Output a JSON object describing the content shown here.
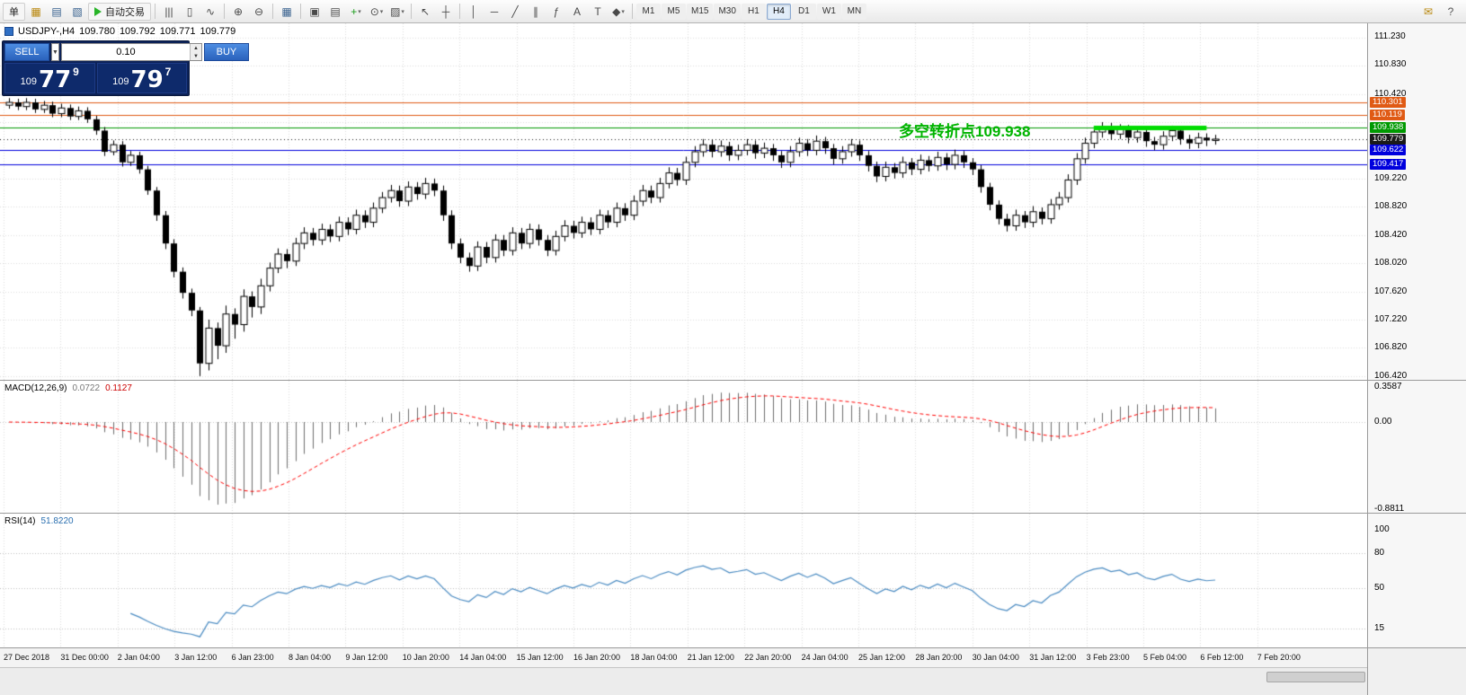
{
  "toolbar": {
    "items": [
      {
        "type": "button",
        "name": "new-order-button",
        "label": "单"
      },
      {
        "type": "icon",
        "name": "market-watch-icon",
        "glyph": "▦",
        "color": "#b8860b"
      },
      {
        "type": "icon",
        "name": "data-window-icon",
        "glyph": "▤",
        "color": "#38618e"
      },
      {
        "type": "icon",
        "name": "navigator-icon",
        "glyph": "▧",
        "color": "#38618e"
      },
      {
        "type": "button",
        "name": "auto-trading-button",
        "label": "自动交易",
        "icon": "play"
      },
      {
        "type": "sep"
      },
      {
        "type": "icon",
        "name": "bar-chart-icon",
        "glyph": "|||"
      },
      {
        "type": "icon",
        "name": "candlestick-chart-icon",
        "glyph": "▯"
      },
      {
        "type": "icon",
        "name": "line-chart-icon",
        "glyph": "∿"
      },
      {
        "type": "sep"
      },
      {
        "type": "icon",
        "name": "zoom-in-icon",
        "glyph": "⊕"
      },
      {
        "type": "icon",
        "name": "zoom-out-icon",
        "glyph": "⊖"
      },
      {
        "type": "sep"
      },
      {
        "type": "icon",
        "name": "tile-windows-icon",
        "glyph": "▦",
        "color": "#38618e"
      },
      {
        "type": "sep"
      },
      {
        "type": "icon",
        "name": "arrange-windows-icon",
        "glyph": "▣"
      },
      {
        "type": "icon",
        "name": "cascade-windows-icon",
        "glyph": "▤"
      },
      {
        "type": "icon",
        "name": "indicators-button",
        "glyph": "+",
        "color": "#1a9c1a",
        "dropdown": true
      },
      {
        "type": "icon",
        "name": "periods-button",
        "glyph": "⊙",
        "dropdown": true
      },
      {
        "type": "icon",
        "name": "templates-button",
        "glyph": "▨",
        "dropdown": true
      },
      {
        "type": "sep"
      },
      {
        "type": "icon",
        "name": "cursor-icon",
        "glyph": "↖"
      },
      {
        "type": "icon",
        "name": "crosshair-icon",
        "glyph": "┼"
      },
      {
        "type": "sep"
      },
      {
        "type": "icon",
        "name": "vertical-line-icon",
        "glyph": "│"
      },
      {
        "type": "icon",
        "name": "horizontal-line-icon",
        "glyph": "─"
      },
      {
        "type": "icon",
        "name": "trendline-icon",
        "glyph": "╱"
      },
      {
        "type": "icon",
        "name": "channel-icon",
        "glyph": "∥"
      },
      {
        "type": "icon",
        "name": "fibonacci-icon",
        "glyph": "ƒ"
      },
      {
        "type": "icon",
        "name": "text-icon",
        "glyph": "A"
      },
      {
        "type": "icon",
        "name": "label-icon",
        "glyph": "T"
      },
      {
        "type": "icon",
        "name": "shapes-icon",
        "glyph": "◆",
        "dropdown": true
      },
      {
        "type": "sep"
      }
    ],
    "timeframes": [
      "M1",
      "M5",
      "M15",
      "M30",
      "H1",
      "H4",
      "D1",
      "W1",
      "MN"
    ],
    "active_timeframe": "H4",
    "right_items": [
      {
        "name": "notifications-icon",
        "glyph": "✉",
        "color": "#b8860b"
      },
      {
        "name": "help-icon",
        "glyph": "?",
        "color": "#555555"
      }
    ]
  },
  "quote": {
    "symbol": "USDJPY-,H4",
    "open": "109.780",
    "high": "109.792",
    "low": "109.771",
    "close": "109.779"
  },
  "one_click": {
    "sell_label": "SELL",
    "buy_label": "BUY",
    "volume": "0.10",
    "bid": {
      "prefix": "109",
      "big": "77",
      "sup": "9"
    },
    "ask": {
      "prefix": "109",
      "big": "79",
      "sup": "7"
    }
  },
  "chart_data": {
    "type": "candlestick",
    "title": "USDJPY-,H4",
    "symbol": "USDJPY-",
    "timeframe": "H4",
    "ylim": [
      106.42,
      111.23
    ],
    "y_grid_step": 0.4,
    "x_labels": [
      "27 Dec 2018",
      "31 Dec 00:00",
      "2 Jan 04:00",
      "3 Jan 12:00",
      "6 Jan 23:00",
      "8 Jan 04:00",
      "9 Jan 12:00",
      "10 Jan 20:00",
      "14 Jan 04:00",
      "15 Jan 12:00",
      "16 Jan 20:00",
      "18 Jan 04:00",
      "21 Jan 12:00",
      "22 Jan 20:00",
      "24 Jan 04:00",
      "25 Jan 12:00",
      "28 Jan 20:00",
      "30 Jan 04:00",
      "31 Jan 12:00",
      "3 Feb 23:00",
      "5 Feb 04:00",
      "6 Feb 12:00",
      "7 Feb 20:00"
    ],
    "price_ticks": [
      "111.230",
      "110.830",
      "110.420",
      "109.220",
      "108.820",
      "108.420",
      "108.020",
      "107.620",
      "107.220",
      "106.820",
      "106.420"
    ],
    "horizontal_lines": [
      {
        "price": 110.301,
        "color": "#e05a14",
        "label": "110.301"
      },
      {
        "price": 110.119,
        "color": "#e05a14",
        "label": "110.119"
      },
      {
        "price": 109.938,
        "color": "#009900",
        "label": "109.938"
      },
      {
        "price": 109.779,
        "color": "#1a1a1a",
        "label": "109.779",
        "style": "dotted",
        "role": "bid"
      },
      {
        "price": 109.622,
        "color": "#0000dd",
        "label": "109.622"
      },
      {
        "price": 109.417,
        "color": "#0000dd",
        "label": "109.417"
      }
    ],
    "highlight_segment": {
      "price": 109.938,
      "from_candle": 125,
      "to_candle": 138,
      "color": "#00dc00",
      "width": 5
    },
    "annotation": {
      "text": "多空转折点109.938",
      "color": "#00b400"
    },
    "candles": [
      [
        110.26,
        110.36,
        110.21,
        110.3
      ],
      [
        110.3,
        110.35,
        110.19,
        110.24
      ],
      [
        110.24,
        110.36,
        110.19,
        110.3
      ],
      [
        110.3,
        110.35,
        110.15,
        110.2
      ],
      [
        110.2,
        110.32,
        110.15,
        110.26
      ],
      [
        110.26,
        110.31,
        110.09,
        110.14
      ],
      [
        110.14,
        110.28,
        110.09,
        110.22
      ],
      [
        110.22,
        110.27,
        110.05,
        110.1
      ],
      [
        110.1,
        110.24,
        110.05,
        110.18
      ],
      [
        110.18,
        110.23,
        110.01,
        110.06
      ],
      [
        110.06,
        110.11,
        109.84,
        109.9
      ],
      [
        109.9,
        109.95,
        109.54,
        109.6
      ],
      [
        109.6,
        109.76,
        109.55,
        109.7
      ],
      [
        109.7,
        109.75,
        109.39,
        109.45
      ],
      [
        109.45,
        109.61,
        109.4,
        109.55
      ],
      [
        109.55,
        109.6,
        109.29,
        109.35
      ],
      [
        109.35,
        109.4,
        108.99,
        109.05
      ],
      [
        109.05,
        109.1,
        108.62,
        108.7
      ],
      [
        108.7,
        108.76,
        108.22,
        108.3
      ],
      [
        108.3,
        108.36,
        107.82,
        107.9
      ],
      [
        107.9,
        107.96,
        107.52,
        107.6
      ],
      [
        107.6,
        107.66,
        107.27,
        107.35
      ],
      [
        107.35,
        107.4,
        106.42,
        106.6
      ],
      [
        106.6,
        107.22,
        106.5,
        107.1
      ],
      [
        107.1,
        107.18,
        106.66,
        106.85
      ],
      [
        106.85,
        107.42,
        106.75,
        107.3
      ],
      [
        107.3,
        107.38,
        106.95,
        107.15
      ],
      [
        107.15,
        107.65,
        107.05,
        107.55
      ],
      [
        107.55,
        107.62,
        107.25,
        107.4
      ],
      [
        107.4,
        107.8,
        107.3,
        107.7
      ],
      [
        107.7,
        108.03,
        107.62,
        107.95
      ],
      [
        107.95,
        108.23,
        107.88,
        108.15
      ],
      [
        108.15,
        108.22,
        107.95,
        108.05
      ],
      [
        108.05,
        108.38,
        107.98,
        108.3
      ],
      [
        108.3,
        108.53,
        108.22,
        108.45
      ],
      [
        108.45,
        108.52,
        108.27,
        108.35
      ],
      [
        108.35,
        108.58,
        108.28,
        108.5
      ],
      [
        108.5,
        108.57,
        108.32,
        108.4
      ],
      [
        108.4,
        108.68,
        108.33,
        108.6
      ],
      [
        108.6,
        108.67,
        108.42,
        108.5
      ],
      [
        108.5,
        108.78,
        108.43,
        108.7
      ],
      [
        108.7,
        108.77,
        108.52,
        108.6
      ],
      [
        108.6,
        108.88,
        108.53,
        108.8
      ],
      [
        108.8,
        109.03,
        108.73,
        108.95
      ],
      [
        108.95,
        109.13,
        108.88,
        109.05
      ],
      [
        109.05,
        109.12,
        108.82,
        108.9
      ],
      [
        108.9,
        109.18,
        108.83,
        109.1
      ],
      [
        109.1,
        109.17,
        108.92,
        109.0
      ],
      [
        109.0,
        109.23,
        108.93,
        109.15
      ],
      [
        109.15,
        109.22,
        108.97,
        109.05
      ],
      [
        109.05,
        109.12,
        108.62,
        108.7
      ],
      [
        108.7,
        108.77,
        108.22,
        108.3
      ],
      [
        108.3,
        108.37,
        108.02,
        108.1
      ],
      [
        108.1,
        108.17,
        107.9,
        107.98
      ],
      [
        107.98,
        108.33,
        107.91,
        108.25
      ],
      [
        108.25,
        108.32,
        108.02,
        108.1
      ],
      [
        108.1,
        108.43,
        108.03,
        108.35
      ],
      [
        108.35,
        108.42,
        108.12,
        108.2
      ],
      [
        108.2,
        108.53,
        108.13,
        108.45
      ],
      [
        108.45,
        108.52,
        108.22,
        108.3
      ],
      [
        108.3,
        108.58,
        108.23,
        108.5
      ],
      [
        108.5,
        108.57,
        108.27,
        108.35
      ],
      [
        108.35,
        108.42,
        108.12,
        108.2
      ],
      [
        108.2,
        108.48,
        108.13,
        108.4
      ],
      [
        108.4,
        108.63,
        108.33,
        108.55
      ],
      [
        108.55,
        108.62,
        108.37,
        108.45
      ],
      [
        108.45,
        108.68,
        108.38,
        108.6
      ],
      [
        108.6,
        108.67,
        108.42,
        108.5
      ],
      [
        108.5,
        108.78,
        108.43,
        108.7
      ],
      [
        108.7,
        108.77,
        108.52,
        108.6
      ],
      [
        108.6,
        108.88,
        108.53,
        108.8
      ],
      [
        108.8,
        108.87,
        108.62,
        108.7
      ],
      [
        108.7,
        108.98,
        108.63,
        108.9
      ],
      [
        108.9,
        109.13,
        108.83,
        109.05
      ],
      [
        109.05,
        109.12,
        108.87,
        108.95
      ],
      [
        108.95,
        109.23,
        108.88,
        109.15
      ],
      [
        109.15,
        109.38,
        109.08,
        109.3
      ],
      [
        109.3,
        109.37,
        109.12,
        109.2
      ],
      [
        109.2,
        109.53,
        109.13,
        109.45
      ],
      [
        109.45,
        109.68,
        109.38,
        109.6
      ],
      [
        109.6,
        109.78,
        109.53,
        109.7
      ],
      [
        109.7,
        109.77,
        109.52,
        109.6
      ],
      [
        109.6,
        109.76,
        109.53,
        109.68
      ],
      [
        109.68,
        109.74,
        109.47,
        109.55
      ],
      [
        109.55,
        109.7,
        109.48,
        109.62
      ],
      [
        109.62,
        109.78,
        109.55,
        109.7
      ],
      [
        109.7,
        109.76,
        109.5,
        109.58
      ],
      [
        109.58,
        109.73,
        109.51,
        109.65
      ],
      [
        109.65,
        109.71,
        109.47,
        109.55
      ],
      [
        109.55,
        109.61,
        109.37,
        109.45
      ],
      [
        109.45,
        109.68,
        109.38,
        109.6
      ],
      [
        109.6,
        109.8,
        109.53,
        109.72
      ],
      [
        109.72,
        109.78,
        109.54,
        109.62
      ],
      [
        109.62,
        109.83,
        109.55,
        109.75
      ],
      [
        109.75,
        109.81,
        109.57,
        109.65
      ],
      [
        109.65,
        109.71,
        109.42,
        109.5
      ],
      [
        109.5,
        109.68,
        109.43,
        109.6
      ],
      [
        109.6,
        109.78,
        109.53,
        109.7
      ],
      [
        109.7,
        109.76,
        109.47,
        109.55
      ],
      [
        109.55,
        109.61,
        109.32,
        109.4
      ],
      [
        109.4,
        109.46,
        109.17,
        109.25
      ],
      [
        109.25,
        109.46,
        109.18,
        109.38
      ],
      [
        109.38,
        109.44,
        109.22,
        109.3
      ],
      [
        109.3,
        109.53,
        109.23,
        109.45
      ],
      [
        109.45,
        109.51,
        109.27,
        109.35
      ],
      [
        109.35,
        109.56,
        109.28,
        109.48
      ],
      [
        109.48,
        109.54,
        109.32,
        109.4
      ],
      [
        109.4,
        109.6,
        109.33,
        109.52
      ],
      [
        109.52,
        109.58,
        109.34,
        109.42
      ],
      [
        109.42,
        109.63,
        109.35,
        109.55
      ],
      [
        109.55,
        109.61,
        109.37,
        109.45
      ],
      [
        109.45,
        109.51,
        109.27,
        109.35
      ],
      [
        109.35,
        109.41,
        109.02,
        109.1
      ],
      [
        109.1,
        109.16,
        108.77,
        108.85
      ],
      [
        108.85,
        108.91,
        108.57,
        108.65
      ],
      [
        108.65,
        108.72,
        108.47,
        108.55
      ],
      [
        108.55,
        108.78,
        108.48,
        108.7
      ],
      [
        108.7,
        108.76,
        108.52,
        108.6
      ],
      [
        108.6,
        108.83,
        108.53,
        108.75
      ],
      [
        108.75,
        108.81,
        108.57,
        108.65
      ],
      [
        108.65,
        108.93,
        108.58,
        108.85
      ],
      [
        108.85,
        109.03,
        108.78,
        108.95
      ],
      [
        108.95,
        109.28,
        108.88,
        109.2
      ],
      [
        109.2,
        109.58,
        109.13,
        109.5
      ],
      [
        109.5,
        109.8,
        109.43,
        109.72
      ],
      [
        109.72,
        109.96,
        109.65,
        109.88
      ],
      [
        109.88,
        110.02,
        109.8,
        109.95
      ],
      [
        109.95,
        110.01,
        109.77,
        109.85
      ],
      [
        109.85,
        109.99,
        109.78,
        109.92
      ],
      [
        109.92,
        109.98,
        109.72,
        109.8
      ],
      [
        109.8,
        109.95,
        109.73,
        109.88
      ],
      [
        109.88,
        109.94,
        109.67,
        109.75
      ],
      [
        109.75,
        109.81,
        109.62,
        109.7
      ],
      [
        109.7,
        109.89,
        109.63,
        109.82
      ],
      [
        109.82,
        109.97,
        109.75,
        109.9
      ],
      [
        109.9,
        109.96,
        109.7,
        109.78
      ],
      [
        109.78,
        109.84,
        109.64,
        109.72
      ],
      [
        109.72,
        109.87,
        109.65,
        109.8
      ],
      [
        109.8,
        109.86,
        109.68,
        109.76
      ],
      [
        109.76,
        109.84,
        109.7,
        109.779
      ]
    ],
    "indicators": [
      {
        "name": "MACD",
        "label": "MACD(12,26,9)",
        "params": [
          12,
          26,
          9
        ],
        "values": {
          "macd": "0.0722",
          "signal": "0.1127"
        },
        "axis_ticks": [
          "0.3587",
          "0.00",
          "-0.8811"
        ],
        "colors": {
          "histogram": "#6e6e6e",
          "signal": "#ff0000"
        }
      },
      {
        "name": "RSI",
        "label": "RSI(14)",
        "params": [
          14
        ],
        "value": "51.8220",
        "axis_ticks": [
          "100",
          "80",
          "50",
          "15"
        ],
        "levels": [
          80,
          50,
          15
        ],
        "color": "#4a8bc2"
      }
    ]
  }
}
